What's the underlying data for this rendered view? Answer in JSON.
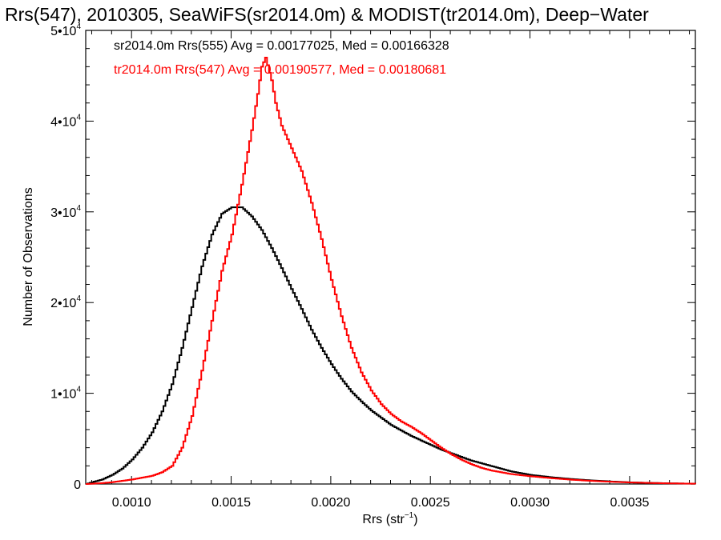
{
  "chart_data": {
    "type": "line",
    "title": "Rrs(547), 2010305, SeaWiFS(sr2014.0m) & MODIST(tr2014.0m), Deep−Water",
    "xlabel": "Rrs (str",
    "xlabel_sup": "−1",
    "xlabel_tail": ")",
    "ylabel": "Number of Observations",
    "xlim": [
      0.00077,
      0.00383
    ],
    "ylim": [
      0,
      50000
    ],
    "x_ticks": [
      {
        "value": 0.001,
        "label": "0.0010"
      },
      {
        "value": 0.0015,
        "label": "0.0015"
      },
      {
        "value": 0.002,
        "label": "0.0020"
      },
      {
        "value": 0.0025,
        "label": "0.0025"
      },
      {
        "value": 0.003,
        "label": "0.0030"
      },
      {
        "value": 0.0035,
        "label": "0.0035"
      }
    ],
    "y_ticks": [
      {
        "value": 0,
        "mant": "0",
        "exp": ""
      },
      {
        "value": 10000,
        "mant": "1•10",
        "exp": "4"
      },
      {
        "value": 20000,
        "mant": "2•10",
        "exp": "4"
      },
      {
        "value": 30000,
        "mant": "3•10",
        "exp": "4"
      },
      {
        "value": 40000,
        "mant": "4•10",
        "exp": "4"
      },
      {
        "value": 50000,
        "mant": "5•10",
        "exp": "4"
      }
    ],
    "grid": false,
    "legend_position": "top-left",
    "series": [
      {
        "label": "sr2014.0m Rrs(555) Avg = 0.00177025, Med = 0.00166328",
        "color": "#000000",
        "step": true,
        "points": [
          [
            0.00077,
            0
          ],
          [
            0.0008,
            200
          ],
          [
            0.00085,
            500
          ],
          [
            0.0009,
            1000
          ],
          [
            0.00095,
            1700
          ],
          [
            0.001,
            2700
          ],
          [
            0.00105,
            4000
          ],
          [
            0.0011,
            5700
          ],
          [
            0.00115,
            8000
          ],
          [
            0.0012,
            11000
          ],
          [
            0.00125,
            15000
          ],
          [
            0.0013,
            19500
          ],
          [
            0.00135,
            24000
          ],
          [
            0.0014,
            27500
          ],
          [
            0.00145,
            29800
          ],
          [
            0.0015,
            30500
          ],
          [
            0.00155,
            30500
          ],
          [
            0.0016,
            29500
          ],
          [
            0.00165,
            28000
          ],
          [
            0.0017,
            26000
          ],
          [
            0.00175,
            23800
          ],
          [
            0.0018,
            21500
          ],
          [
            0.00185,
            19300
          ],
          [
            0.0019,
            17000
          ],
          [
            0.00195,
            15000
          ],
          [
            0.002,
            13200
          ],
          [
            0.00205,
            11600
          ],
          [
            0.0021,
            10200
          ],
          [
            0.00215,
            9100
          ],
          [
            0.0022,
            8100
          ],
          [
            0.00225,
            7300
          ],
          [
            0.0023,
            6500
          ],
          [
            0.00235,
            5900
          ],
          [
            0.0024,
            5300
          ],
          [
            0.00245,
            4800
          ],
          [
            0.0025,
            4300
          ],
          [
            0.00255,
            3800
          ],
          [
            0.0026,
            3400
          ],
          [
            0.00265,
            3000
          ],
          [
            0.0027,
            2600
          ],
          [
            0.00275,
            2300
          ],
          [
            0.0028,
            2000
          ],
          [
            0.00285,
            1700
          ],
          [
            0.0029,
            1400
          ],
          [
            0.00295,
            1200
          ],
          [
            0.003,
            1000
          ],
          [
            0.0031,
            750
          ],
          [
            0.0032,
            550
          ],
          [
            0.0033,
            400
          ],
          [
            0.0034,
            280
          ],
          [
            0.0035,
            180
          ],
          [
            0.0036,
            120
          ],
          [
            0.0037,
            70
          ],
          [
            0.0038,
            40
          ],
          [
            0.00383,
            30
          ]
        ]
      },
      {
        "label": "tr2014.0m Rrs(547) Avg = 0.00190577, Med = 0.00180681",
        "color": "#ff0000",
        "step": true,
        "points": [
          [
            0.00077,
            0
          ],
          [
            0.00085,
            100
          ],
          [
            0.0009,
            200
          ],
          [
            0.00095,
            350
          ],
          [
            0.001,
            500
          ],
          [
            0.00105,
            700
          ],
          [
            0.0011,
            900
          ],
          [
            0.00115,
            1300
          ],
          [
            0.0012,
            2000
          ],
          [
            0.00125,
            4000
          ],
          [
            0.0013,
            7500
          ],
          [
            0.00135,
            12500
          ],
          [
            0.0014,
            18000
          ],
          [
            0.00145,
            23500
          ],
          [
            0.0015,
            27500
          ],
          [
            0.00155,
            33000
          ],
          [
            0.0016,
            39000
          ],
          [
            0.00163,
            43000
          ],
          [
            0.00165,
            46000
          ],
          [
            0.00167,
            47000
          ],
          [
            0.0017,
            44500
          ],
          [
            0.00172,
            42000
          ],
          [
            0.00175,
            39500
          ],
          [
            0.0018,
            37000
          ],
          [
            0.00185,
            34500
          ],
          [
            0.0019,
            31000
          ],
          [
            0.00195,
            27000
          ],
          [
            0.002,
            22500
          ],
          [
            0.00205,
            18500
          ],
          [
            0.0021,
            15000
          ],
          [
            0.00215,
            12300
          ],
          [
            0.0022,
            10300
          ],
          [
            0.00225,
            8800
          ],
          [
            0.0023,
            7700
          ],
          [
            0.00235,
            6900
          ],
          [
            0.0024,
            6300
          ],
          [
            0.00245,
            5600
          ],
          [
            0.0025,
            4800
          ],
          [
            0.00255,
            4000
          ],
          [
            0.0026,
            3300
          ],
          [
            0.00265,
            2700
          ],
          [
            0.0027,
            2200
          ],
          [
            0.00275,
            1800
          ],
          [
            0.0028,
            1500
          ],
          [
            0.0029,
            1100
          ],
          [
            0.003,
            850
          ],
          [
            0.0031,
            650
          ],
          [
            0.0032,
            480
          ],
          [
            0.0033,
            350
          ],
          [
            0.0034,
            250
          ],
          [
            0.0035,
            170
          ],
          [
            0.0036,
            110
          ],
          [
            0.0037,
            70
          ],
          [
            0.0038,
            40
          ],
          [
            0.00383,
            30
          ]
        ]
      }
    ]
  }
}
